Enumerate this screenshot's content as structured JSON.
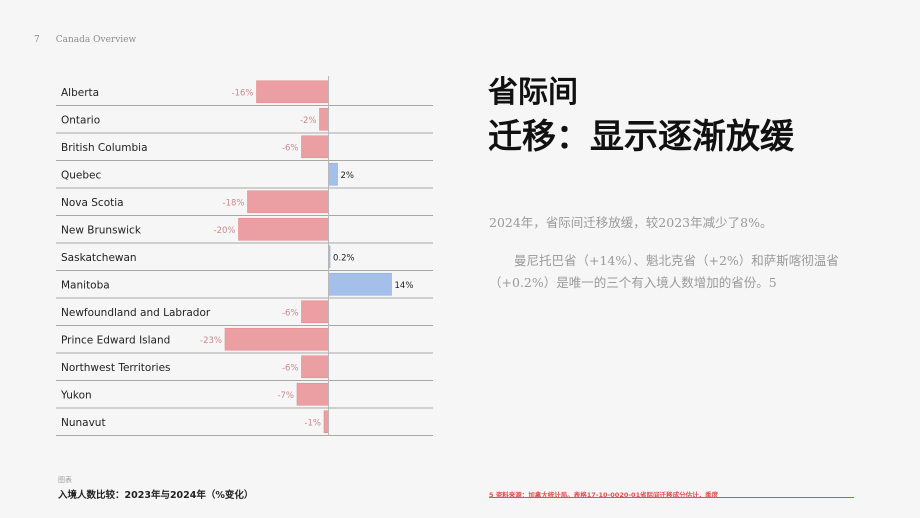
{
  "header": {
    "page_number": "7",
    "section": "Canada Overview"
  },
  "title": {
    "line1": "省际间",
    "line2": "迁移：显示逐渐放缓"
  },
  "summary": "2024年，省际间迁移放缓，较2023年减少了8%。",
  "detail": "曼尼托巴省（+14%）、魁北克省（+2%）和萨斯喀彻温省（+0.2%）是唯一的三个有入境人数增加的省份。5",
  "caption": {
    "label": "图表",
    "text": "入境人数比较：2023年与2024年（%变化）"
  },
  "source": "5 资料来源：加拿大统计局。表格17-10-0020-01省际间迁移成分估计，季度",
  "colors": {
    "negative": "#ec9fa2",
    "positive": "#a3bfea",
    "negative_label": "#c98a8c",
    "row_rule": "#a8a8a8"
  },
  "chart_data": {
    "type": "bar",
    "orientation": "horizontal",
    "categories": [
      "Alberta",
      "Ontario",
      "British Columbia",
      "Quebec",
      "Nova Scotia",
      "New Brunswick",
      "Saskatchewan",
      "Manitoba",
      "Newfoundland and Labrador",
      "Prince Edward Island",
      "Northwest Territories",
      "Yukon",
      "Nunavut"
    ],
    "values": [
      -16,
      -2,
      -6,
      2,
      -18,
      -20,
      0.2,
      14,
      -6,
      -23,
      -6,
      -7,
      -1
    ],
    "value_labels": [
      "-16%",
      "-2%",
      "-6%",
      "2%",
      "-18%",
      "-20%",
      "0.2%",
      "14%",
      "-6%",
      "-23%",
      "-6%",
      "-7%",
      "-1%"
    ],
    "xlim": [
      -23,
      14
    ],
    "title": "入境人数比较：2023年与2024年（%变化）",
    "xlabel": "",
    "ylabel": "",
    "grid": false
  }
}
